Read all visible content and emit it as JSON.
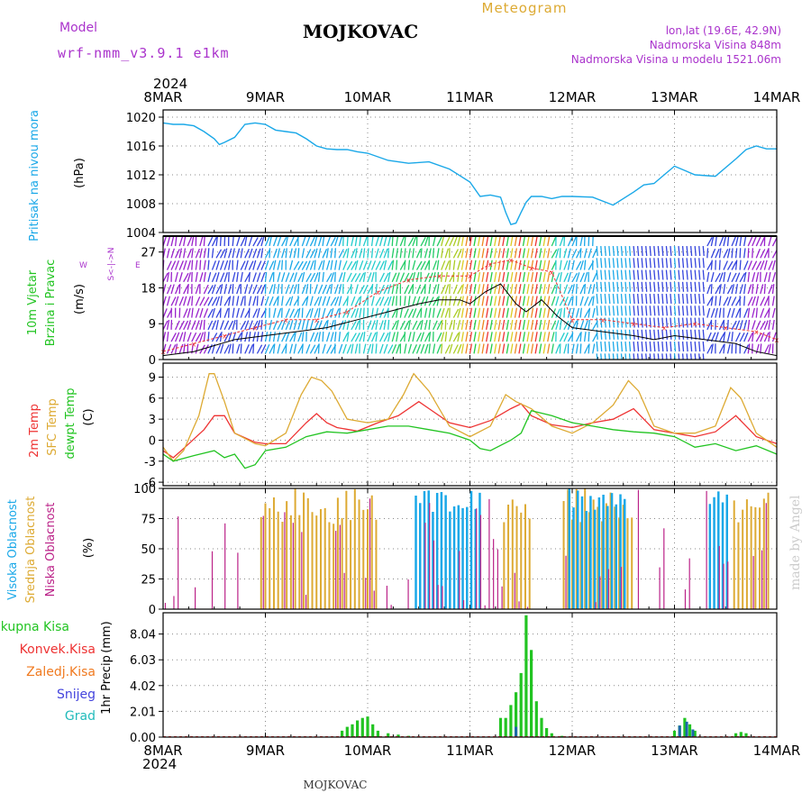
{
  "header": {
    "model_label": "Model",
    "model_name": "wrf-nmm_v3.9.1 e1km",
    "station_title": "MOJKOVAC",
    "meteogram_label": "Meteogram",
    "coords": "lon,lat (19.6E, 42.9N)",
    "elevation": "Nadmorska Visina 848m",
    "model_elevation": "Nadmorska Visina u modelu 1521.06m",
    "footer_station": "MOJKOVAC",
    "watermark": "made by Angel"
  },
  "colors": {
    "pressure": "#1aa8e8",
    "green": "#22c422",
    "red": "#ee3333",
    "orange": "#f07a20",
    "tan": "#ddaa33",
    "purple": "#aa33cc",
    "magenta": "#bb2288",
    "blue": "#4444dd",
    "cyan": "#22bbbb",
    "black": "#000000",
    "watermark": "#cccccc"
  },
  "chart_data": [
    {
      "type": "line",
      "panel": "pressure",
      "ylabel": "Pritisak na nivou mora",
      "yunit": "(hPa)",
      "ylim": [
        1004,
        1021
      ],
      "yticks": [
        1004,
        1008,
        1012,
        1016,
        1020
      ],
      "x_days": [
        0,
        0.1,
        0.2,
        0.3,
        0.4,
        0.5,
        0.55,
        0.6,
        0.7,
        0.8,
        0.9,
        1.0,
        1.1,
        1.2,
        1.3,
        1.4,
        1.5,
        1.6,
        1.7,
        1.8,
        1.9,
        2.0,
        2.2,
        2.4,
        2.6,
        2.8,
        3.0,
        3.1,
        3.2,
        3.3,
        3.35,
        3.4,
        3.45,
        3.5,
        3.55,
        3.6,
        3.7,
        3.8,
        3.9,
        4.0,
        4.2,
        4.4,
        4.6,
        4.7,
        4.8,
        4.9,
        5.0,
        5.2,
        5.4,
        5.6,
        5.7,
        5.8,
        5.9,
        6.0
      ],
      "values": [
        1019.2,
        1019.0,
        1019.0,
        1018.8,
        1018.0,
        1017.0,
        1016.2,
        1016.5,
        1017.2,
        1019.0,
        1019.2,
        1019.0,
        1018.2,
        1018.0,
        1017.8,
        1017.0,
        1016.0,
        1015.6,
        1015.5,
        1015.5,
        1015.2,
        1015.0,
        1014.0,
        1013.6,
        1013.8,
        1012.8,
        1011.0,
        1009.0,
        1009.2,
        1008.9,
        1006.8,
        1005.1,
        1005.3,
        1006.8,
        1008.2,
        1009.0,
        1009.0,
        1008.7,
        1009.0,
        1009.0,
        1008.9,
        1007.8,
        1009.6,
        1010.6,
        1010.8,
        1012.0,
        1013.2,
        1012.0,
        1011.8,
        1014.2,
        1015.5,
        1016.0,
        1015.6,
        1015.6
      ]
    },
    {
      "type": "line",
      "panel": "wind",
      "ylabel": "10m Vjetar Brzina i Pravac",
      "yunit": "(m/s)",
      "direction_legend": "S<-|->N W E",
      "ylim": [
        0,
        31
      ],
      "yticks": [
        0,
        9,
        18,
        27
      ],
      "series": [
        {
          "name": "10m Vjetar",
          "x_days": [
            0,
            0.3,
            0.5,
            0.7,
            1.0,
            1.3,
            1.6,
            1.9,
            2.2,
            2.5,
            2.7,
            2.9,
            3.0,
            3.15,
            3.3,
            3.45,
            3.55,
            3.7,
            3.85,
            4.0,
            4.3,
            4.6,
            4.8,
            5.0,
            5.3,
            5.6,
            5.8,
            6.0
          ],
          "values": [
            1,
            2,
            3.5,
            5,
            6,
            7,
            8,
            10,
            12,
            14,
            15,
            15,
            14,
            17,
            19,
            14,
            12,
            15,
            11,
            8,
            7,
            6,
            5,
            6,
            5,
            4,
            2,
            1
          ]
        },
        {
          "name": "udari",
          "x_days": [
            0,
            0.3,
            0.6,
            0.9,
            1.2,
            1.5,
            1.8,
            2.1,
            2.4,
            2.7,
            3.0,
            3.2,
            3.4,
            3.6,
            3.8,
            4.0,
            4.3,
            4.6,
            4.9,
            5.2,
            5.5,
            5.8,
            6.0
          ],
          "values": [
            2,
            4,
            6,
            8,
            10,
            10,
            12,
            17,
            20,
            21,
            21,
            24,
            25,
            23,
            22,
            10,
            10,
            9,
            8,
            9,
            8,
            7,
            5
          ]
        }
      ]
    },
    {
      "type": "line",
      "panel": "temperature",
      "yunit": "(C)",
      "ylim": [
        -6.5,
        11
      ],
      "yticks": [
        -6,
        -3,
        0,
        3,
        6,
        9
      ],
      "series": [
        {
          "name": "2m Temp",
          "x_days": [
            0,
            0.1,
            0.2,
            0.4,
            0.5,
            0.6,
            0.7,
            0.9,
            1.0,
            1.2,
            1.4,
            1.5,
            1.6,
            1.7,
            1.9,
            2.1,
            2.3,
            2.5,
            2.6,
            2.8,
            3.0,
            3.2,
            3.4,
            3.5,
            3.6,
            3.8,
            4.0,
            4.2,
            4.4,
            4.6,
            4.7,
            4.8,
            5.0,
            5.2,
            5.4,
            5.6,
            5.7,
            5.8,
            6.0
          ],
          "values": [
            -1.5,
            -2.5,
            -1.2,
            1.5,
            3.5,
            3.5,
            1.0,
            -0.3,
            -0.5,
            -0.5,
            2.5,
            3.8,
            2.5,
            1.8,
            1.3,
            2.5,
            3.5,
            5.5,
            4.5,
            2.5,
            1.8,
            2.8,
            4.5,
            5.2,
            3.5,
            2.2,
            1.8,
            2.5,
            3.0,
            4.5,
            3.0,
            1.5,
            1.0,
            0.5,
            1.2,
            3.5,
            2.0,
            0.5,
            -0.5
          ]
        },
        {
          "name": "SFC Temp",
          "x_days": [
            0,
            0.1,
            0.2,
            0.35,
            0.45,
            0.5,
            0.6,
            0.7,
            0.9,
            1.0,
            1.2,
            1.35,
            1.45,
            1.55,
            1.65,
            1.8,
            2.0,
            2.2,
            2.35,
            2.45,
            2.6,
            2.8,
            3.0,
            3.2,
            3.35,
            3.45,
            3.6,
            3.8,
            4.0,
            4.2,
            4.4,
            4.55,
            4.65,
            4.8,
            5.0,
            5.2,
            5.4,
            5.55,
            5.65,
            5.8,
            6.0
          ],
          "values": [
            -1.0,
            -3.0,
            -1.5,
            3.5,
            9.5,
            9.5,
            5.5,
            1.0,
            -0.5,
            -0.8,
            1.0,
            6.5,
            9.0,
            8.5,
            7.0,
            3.0,
            2.5,
            3.0,
            6.5,
            9.5,
            7.0,
            2.0,
            0.5,
            2.0,
            6.5,
            5.5,
            4.5,
            2.0,
            1.0,
            2.5,
            5.0,
            8.5,
            7.0,
            2.0,
            1.0,
            1.0,
            2.0,
            7.5,
            6.0,
            1.0,
            -1.0
          ]
        },
        {
          "name": "dewpt Temp",
          "x_days": [
            0,
            0.1,
            0.3,
            0.5,
            0.6,
            0.7,
            0.8,
            0.9,
            1.0,
            1.2,
            1.4,
            1.6,
            1.8,
            2.0,
            2.2,
            2.4,
            2.6,
            2.8,
            3.0,
            3.1,
            3.2,
            3.4,
            3.5,
            3.6,
            3.8,
            4.0,
            4.2,
            4.4,
            4.6,
            4.8,
            5.0,
            5.2,
            5.4,
            5.6,
            5.8,
            6.0
          ],
          "values": [
            -2.0,
            -3.0,
            -2.2,
            -1.5,
            -2.5,
            -2.0,
            -4.0,
            -3.5,
            -1.5,
            -1.0,
            0.5,
            1.2,
            1.0,
            1.5,
            2.0,
            2.0,
            1.5,
            1.0,
            0.0,
            -1.2,
            -1.5,
            0.0,
            1.0,
            4.2,
            3.5,
            2.5,
            2.0,
            1.5,
            1.2,
            1.0,
            0.5,
            -1.0,
            -0.5,
            -1.5,
            -0.8,
            -2.0
          ]
        }
      ]
    },
    {
      "type": "bar",
      "panel": "clouds",
      "yunit": "(%)",
      "ylim": [
        0,
        100
      ],
      "yticks": [
        0,
        25,
        50,
        75,
        100
      ],
      "series": [
        {
          "name": "Visoka Oblacnost"
        },
        {
          "name": "Srednja Oblacnost"
        },
        {
          "name": "Niska Oblacnost"
        }
      ]
    },
    {
      "type": "bar",
      "panel": "precip",
      "ylabel": "1hr Precip",
      "yunit": "(mm)",
      "ylim": [
        0,
        9.7
      ],
      "yticks": [
        0,
        2.01,
        4.02,
        6.03,
        8.04
      ],
      "series": [
        {
          "name": "Ukupna Kisa"
        },
        {
          "name": "Konvek.Kisa"
        },
        {
          "name": "Zaledj.Kisa"
        },
        {
          "name": "Snijeg"
        },
        {
          "name": "Grad"
        }
      ],
      "x_days": [
        1.75,
        1.8,
        1.85,
        1.9,
        1.95,
        2.0,
        2.05,
        2.1,
        2.2,
        2.3,
        2.4,
        3.3,
        3.35,
        3.4,
        3.45,
        3.5,
        3.55,
        3.6,
        3.65,
        3.7,
        3.75,
        3.8,
        3.9,
        5.0,
        5.05,
        5.1,
        5.15,
        5.2,
        5.6,
        5.65,
        5.7
      ],
      "values": [
        0.5,
        0.8,
        1.0,
        1.3,
        1.5,
        1.6,
        1.0,
        0.5,
        0.3,
        0.2,
        0.1,
        1.5,
        1.5,
        2.5,
        3.5,
        5.0,
        9.5,
        6.8,
        2.8,
        1.5,
        0.7,
        0.3,
        0.1,
        0.5,
        0.9,
        1.5,
        1.0,
        0.5,
        0.3,
        0.4,
        0.3
      ]
    }
  ],
  "xaxis": {
    "year": "2024",
    "day_labels": [
      "8MAR",
      "9MAR",
      "10MAR",
      "11MAR",
      "12MAR",
      "13MAR",
      "14MAR"
    ]
  }
}
